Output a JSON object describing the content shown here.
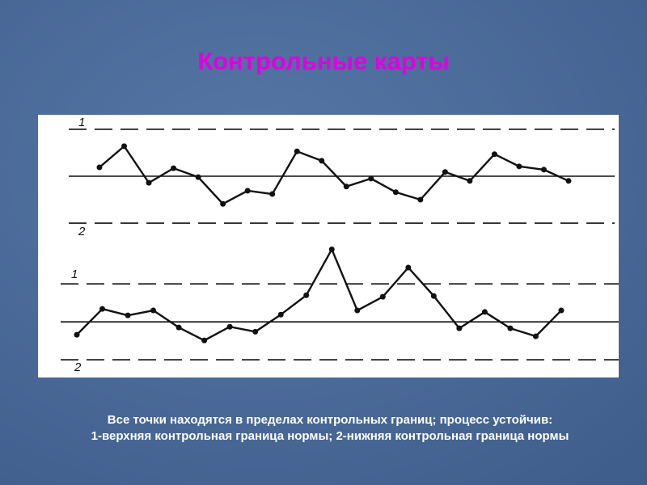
{
  "title": "Контрольные карты",
  "caption": [
    "Все точки находятся в пределах контрольных границ; процесс устойчив:",
    "1-верхняя контрольная граница нормы; 2-нижняя контрольная граница нормы"
  ],
  "chart_data": [
    {
      "type": "line",
      "limit_labels": [
        "1",
        "2"
      ],
      "center": 0,
      "ucl": 1,
      "lcl": -1,
      "categories": [
        null,
        null,
        null,
        null,
        null,
        null,
        null,
        null,
        null,
        null,
        null,
        null,
        null,
        null,
        null,
        null,
        null,
        null,
        null,
        null
      ],
      "values": [
        0.19,
        0.64,
        -0.14,
        0.17,
        -0.02,
        -0.59,
        -0.31,
        -0.38,
        0.53,
        0.33,
        -0.22,
        -0.05,
        -0.34,
        -0.5,
        0.09,
        -0.1,
        0.47,
        0.21,
        0.14,
        -0.1
      ],
      "color": "#111111",
      "ylim": [
        -1.31,
        1.31
      ]
    },
    {
      "type": "line",
      "limit_labels": [
        "1",
        "2"
      ],
      "center": 0,
      "ucl": 1,
      "lcl": -1,
      "categories": [
        null,
        null,
        null,
        null,
        null,
        null,
        null,
        null,
        null,
        null,
        null,
        null,
        null,
        null,
        null,
        null,
        null,
        null,
        null,
        null
      ],
      "values": [
        -0.34,
        0.34,
        0.17,
        0.3,
        -0.15,
        -0.49,
        -0.13,
        -0.26,
        0.19,
        0.7,
        1.91,
        0.3,
        0.66,
        1.43,
        0.68,
        -0.17,
        0.26,
        -0.17,
        -0.38,
        0.3
      ],
      "color": "#111111",
      "ylim": [
        -1.36,
        2.09
      ]
    }
  ]
}
